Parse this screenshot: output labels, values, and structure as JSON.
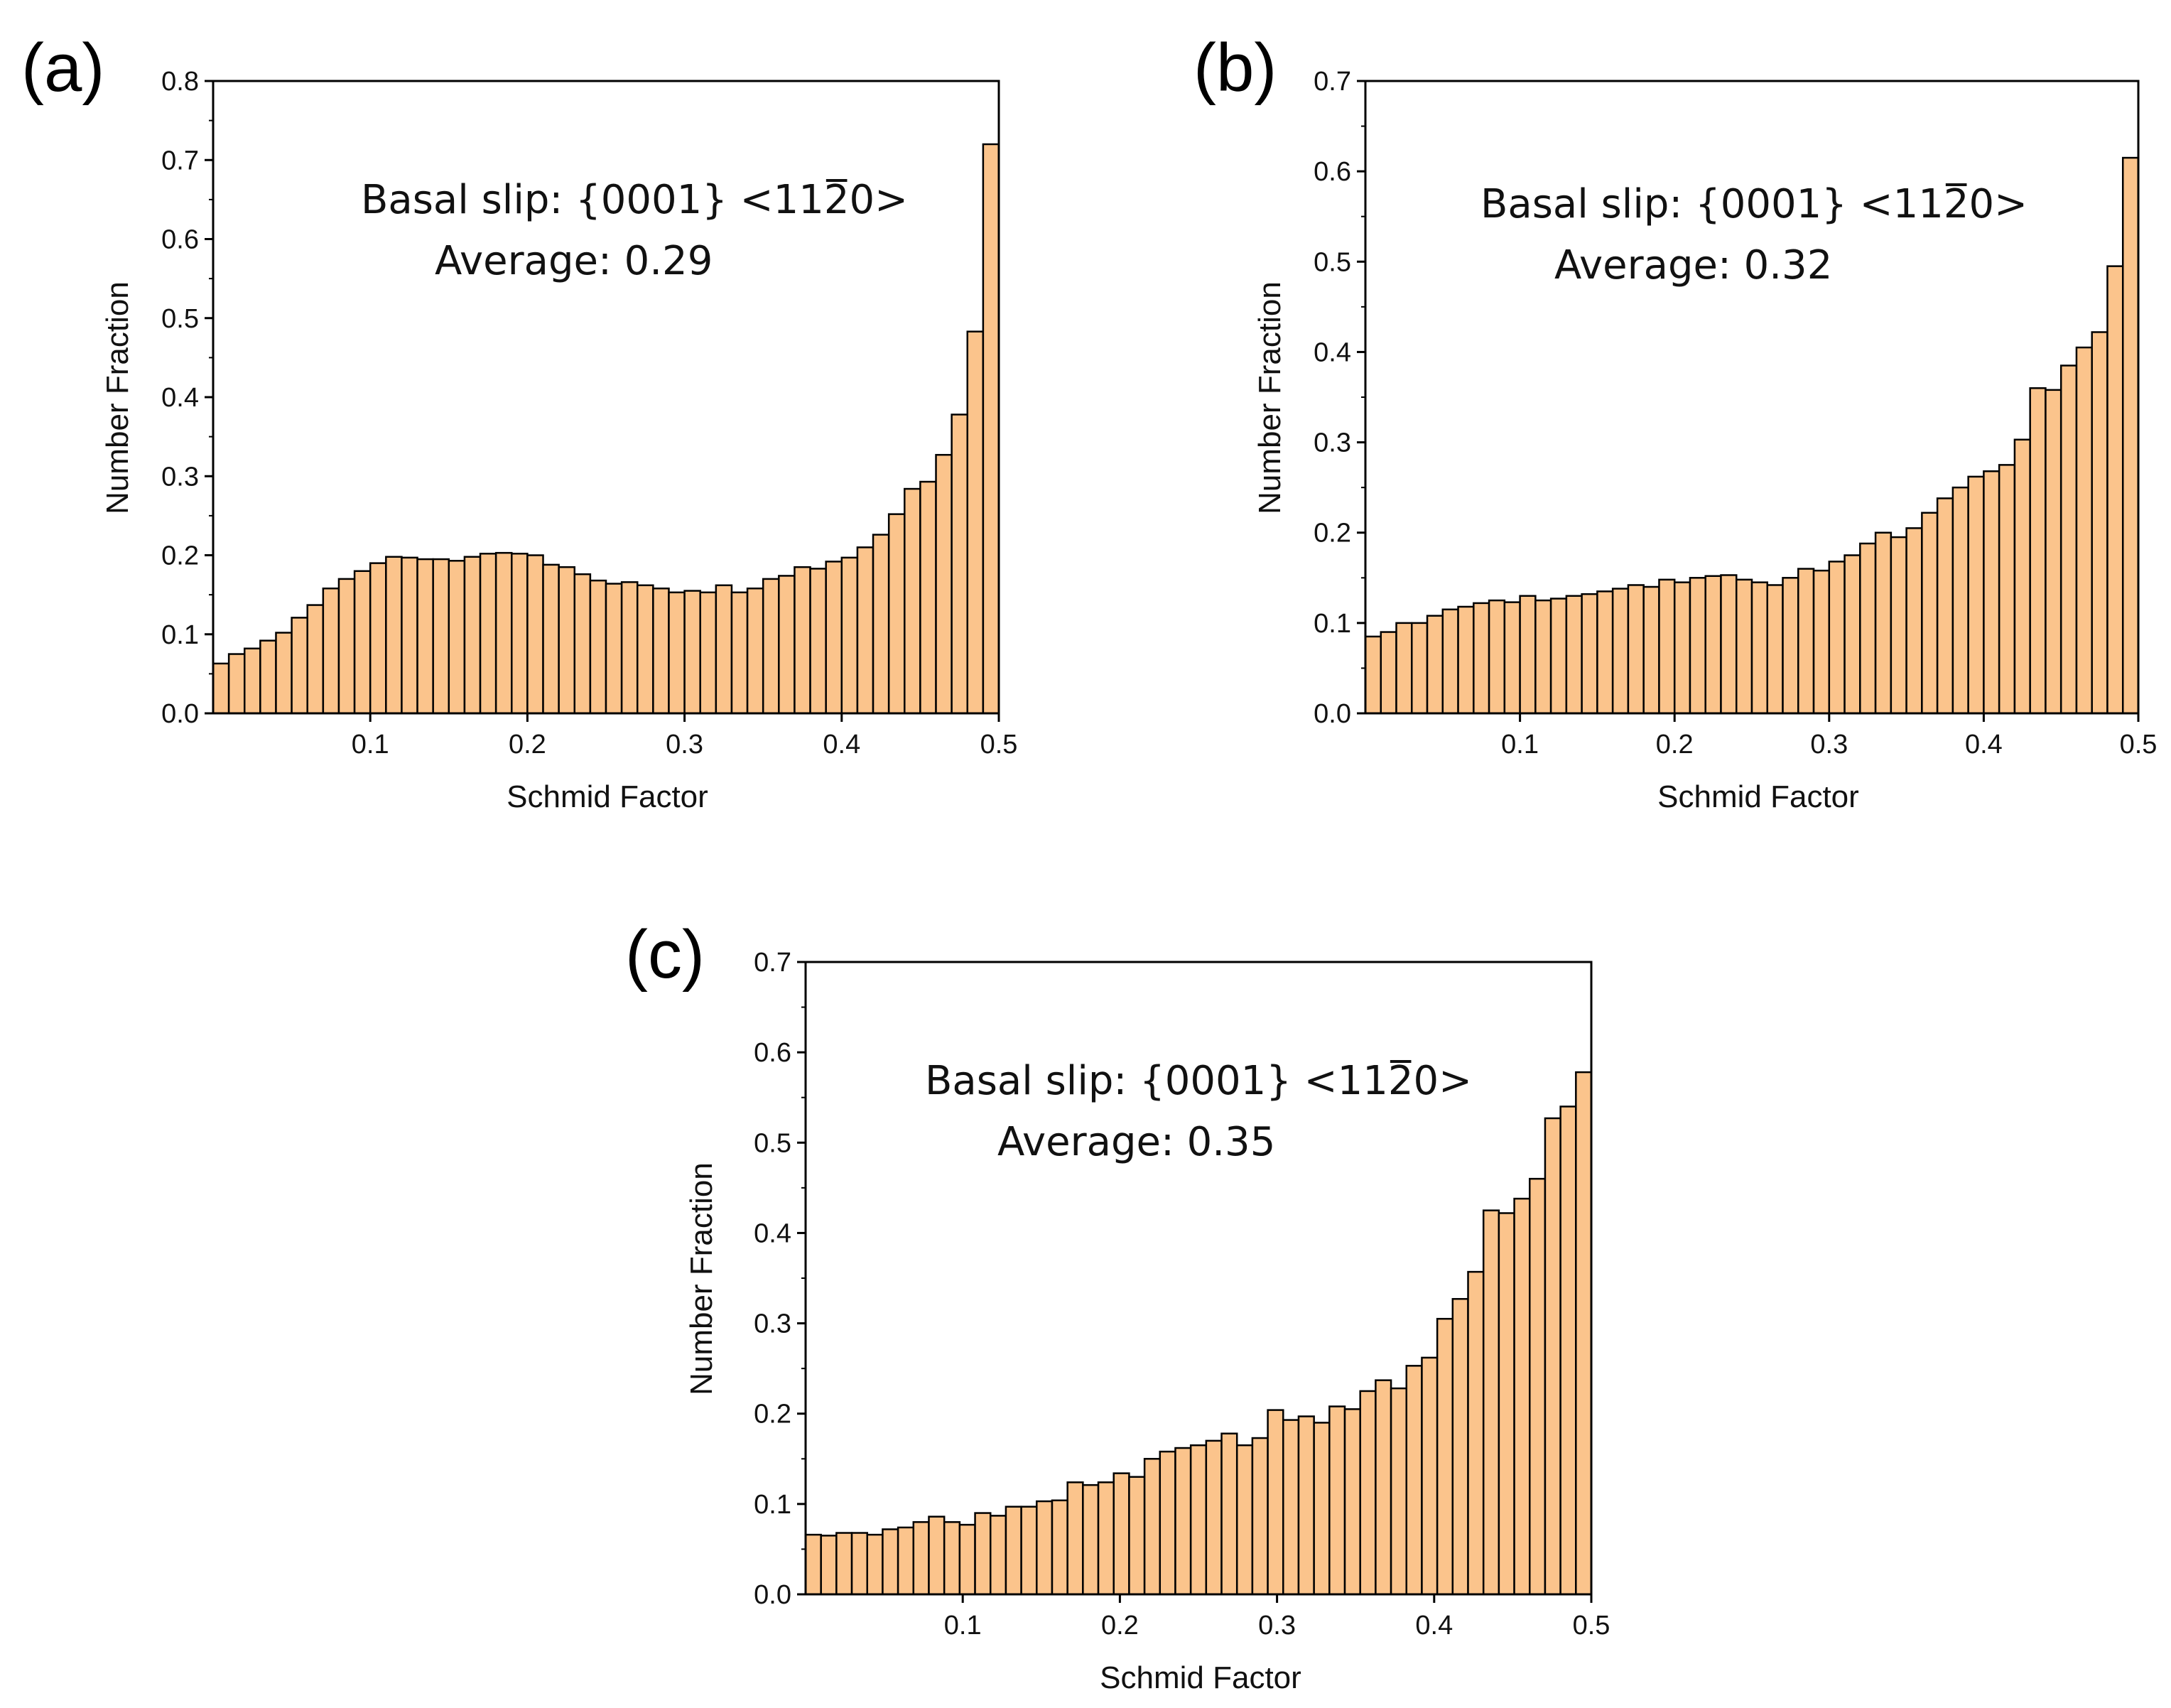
{
  "chart_data": [
    {
      "type": "bar",
      "panel_label": "(a)",
      "annotation_line1": "Basal slip: {0001} <11̅2̅0>",
      "annotation_line1_text": "Basal slip: {0001} <1120>",
      "annotation_line2": "Average: 0.29",
      "xlabel": "Schmid Factor",
      "ylabel": "Number Fraction",
      "xlim": [
        0,
        0.5
      ],
      "ylim": [
        0,
        0.8
      ],
      "xticks": [
        "0.1",
        "0.2",
        "0.3",
        "0.4",
        "0.5"
      ],
      "yticks": [
        "0.0",
        "0.1",
        "0.2",
        "0.3",
        "0.4",
        "0.5",
        "0.6",
        "0.7",
        "0.8"
      ],
      "bar_color": "#FBC48C",
      "bin_width": 0.01,
      "values": [
        0.063,
        0.075,
        0.082,
        0.092,
        0.102,
        0.121,
        0.137,
        0.158,
        0.17,
        0.18,
        0.19,
        0.198,
        0.197,
        0.195,
        0.195,
        0.193,
        0.198,
        0.202,
        0.203,
        0.202,
        0.2,
        0.188,
        0.185,
        0.176,
        0.168,
        0.164,
        0.166,
        0.162,
        0.158,
        0.153,
        0.155,
        0.153,
        0.162,
        0.153,
        0.158,
        0.17,
        0.174,
        0.185,
        0.183,
        0.192,
        0.197,
        0.21,
        0.226,
        0.252,
        0.284,
        0.293,
        0.327,
        0.378,
        0.483,
        0.72
      ]
    },
    {
      "type": "bar",
      "panel_label": "(b)",
      "annotation_line1_text": "Basal slip: {0001} <1120>",
      "annotation_line2": "Average: 0.32",
      "xlabel": "Schmid Factor",
      "ylabel": "Number Fraction",
      "xlim": [
        0,
        0.5
      ],
      "ylim": [
        0,
        0.7
      ],
      "xticks": [
        "0.1",
        "0.2",
        "0.3",
        "0.4",
        "0.5"
      ],
      "yticks": [
        "0.0",
        "0.1",
        "0.2",
        "0.3",
        "0.4",
        "0.5",
        "0.6",
        "0.7"
      ],
      "bar_color": "#FBC48C",
      "bin_width": 0.01,
      "values": [
        0.085,
        0.09,
        0.1,
        0.1,
        0.108,
        0.115,
        0.118,
        0.122,
        0.125,
        0.123,
        0.13,
        0.125,
        0.127,
        0.13,
        0.132,
        0.135,
        0.138,
        0.142,
        0.14,
        0.148,
        0.145,
        0.15,
        0.152,
        0.153,
        0.148,
        0.145,
        0.142,
        0.15,
        0.16,
        0.158,
        0.168,
        0.175,
        0.188,
        0.2,
        0.195,
        0.205,
        0.222,
        0.238,
        0.25,
        0.262,
        0.268,
        0.275,
        0.303,
        0.36,
        0.358,
        0.385,
        0.405,
        0.422,
        0.495,
        0.615
      ]
    },
    {
      "type": "bar",
      "panel_label": "(c)",
      "annotation_line1_text": "Basal slip: {0001} <1120>",
      "annotation_line2": "Average: 0.35",
      "xlabel": "Schmid Factor",
      "ylabel": "Number Fraction",
      "xlim": [
        0,
        0.5
      ],
      "ylim": [
        0,
        0.7
      ],
      "xticks": [
        "0.1",
        "0.2",
        "0.3",
        "0.4",
        "0.5"
      ],
      "yticks": [
        "0.0",
        "0.1",
        "0.2",
        "0.3",
        "0.4",
        "0.5",
        "0.6",
        "0.7"
      ],
      "bar_color": "#FBC48C",
      "bin_width": 0.01,
      "values": [
        0.066,
        0.065,
        0.068,
        0.068,
        0.066,
        0.072,
        0.074,
        0.08,
        0.086,
        0.08,
        0.077,
        0.09,
        0.087,
        0.097,
        0.097,
        0.103,
        0.104,
        0.124,
        0.121,
        0.124,
        0.134,
        0.13,
        0.15,
        0.158,
        0.162,
        0.165,
        0.17,
        0.178,
        0.165,
        0.173,
        0.204,
        0.193,
        0.197,
        0.19,
        0.208,
        0.205,
        0.225,
        0.237,
        0.228,
        0.253,
        0.262,
        0.305,
        0.327,
        0.357,
        0.425,
        0.422,
        0.438,
        0.46,
        0.527,
        0.54,
        0.578
      ]
    }
  ]
}
